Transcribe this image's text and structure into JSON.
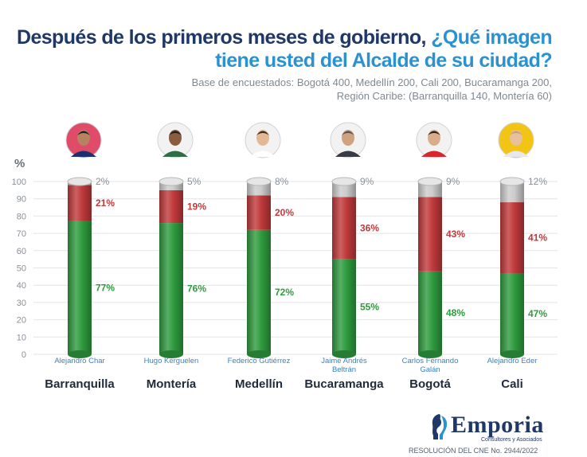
{
  "header": {
    "title_part1": "Después de los primeros meses de gobierno,",
    "title_part2": "¿Qué imagen",
    "title_line2": "tiene usted del Alcalde de su ciudad?",
    "subtitle_line1": "Base de encuestados: Bogotá 400, Medellín 200, Cali 200, Bucaramanga 200,",
    "subtitle_line2": "Región Caribe: (Barranquilla 140, Montería 60)"
  },
  "chart_data": {
    "type": "bar",
    "stacked": true,
    "ylabel": "%",
    "ylim": [
      0,
      100
    ],
    "yticks": [
      0,
      10,
      20,
      30,
      40,
      50,
      60,
      70,
      80,
      90,
      100
    ],
    "grid": true,
    "categories": [
      "Barranquilla",
      "Montería",
      "Medellín",
      "Bucaramanga",
      "Bogotá",
      "Cali"
    ],
    "mayors": [
      "Alejandro Char",
      "Hugo Kerguelen",
      "Federico Gutiérrez",
      "Jaime Andrés Beltrán",
      "Carlos Fernando Galán",
      "Alejandro Eder"
    ],
    "series": [
      {
        "values": [
          77,
          76,
          72,
          55,
          48,
          47
        ],
        "labels": [
          "77%",
          "76%",
          "72%",
          "55%",
          "48%",
          "47%"
        ],
        "color": "#2e9b3e"
      },
      {
        "values": [
          21,
          19,
          20,
          36,
          43,
          41
        ],
        "labels": [
          "21%",
          "19%",
          "20%",
          "36%",
          "43%",
          "41%"
        ],
        "color": "#c0393b"
      },
      {
        "values": [
          2,
          5,
          8,
          9,
          9,
          12
        ],
        "labels": [
          "2%",
          "5%",
          "8%",
          "9%",
          "9%",
          "12%"
        ],
        "color": "#cccccc"
      }
    ]
  },
  "footer": {
    "logo_name": "Emporia",
    "logo_sub": "Consultores y Asociados",
    "resolution": "RESOLUCIÓN DEL CNE No. 2944/2022"
  }
}
